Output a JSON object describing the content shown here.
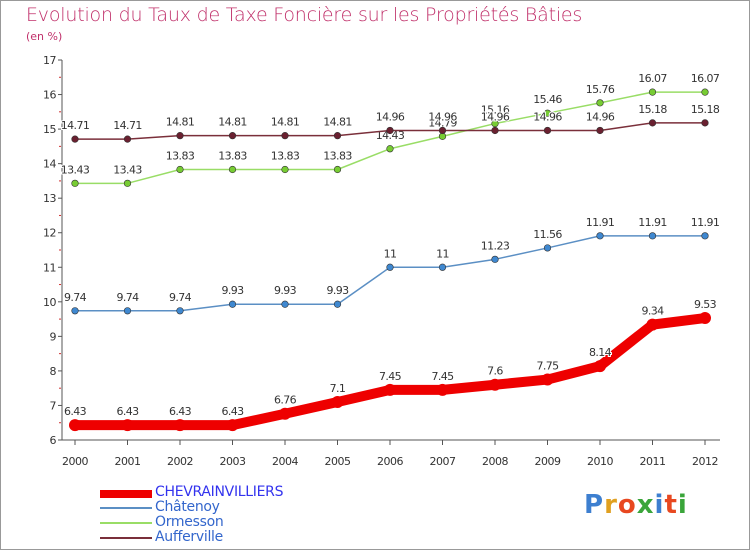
{
  "title": "Evolution du Taux de Taxe Foncière sur les Propriétés Bâties",
  "unit": "(en %)",
  "logo": {
    "letters": [
      "P",
      "r",
      "o",
      "x",
      "i",
      "t",
      "i"
    ],
    "colors": [
      "#3d7fd0",
      "#e0a020",
      "#e84820",
      "#3aa53a",
      "#3d7fd0",
      "#e84820",
      "#3aa53a"
    ]
  },
  "chart_data": {
    "type": "line",
    "title": "Evolution du Taux de Taxe Foncière sur les Propriétés Bâties",
    "ylabel": "(en %)",
    "ylim": [
      6,
      17
    ],
    "yticks": [
      6,
      7,
      8,
      9,
      10,
      11,
      12,
      13,
      14,
      15,
      16,
      17
    ],
    "x": [
      "2000",
      "2001",
      "2002",
      "2003",
      "2004",
      "2005",
      "2006",
      "2007",
      "2008",
      "2009",
      "2010",
      "2011",
      "2012"
    ],
    "grid": false,
    "legend_position": "bottom-left",
    "series": [
      {
        "name": "CHEVRAINVILLIERS",
        "color": "#ee0000",
        "marker_color": "#ee0000",
        "label_color": "#ffffff",
        "bold": true,
        "values": [
          6.43,
          6.43,
          6.43,
          6.43,
          6.76,
          7.1,
          7.45,
          7.45,
          7.6,
          7.75,
          8.14,
          9.34,
          9.53
        ],
        "labels": [
          "6.43",
          "6.43",
          "6.43",
          "6.43",
          "6.76",
          "7.1",
          "7.45",
          "7.45",
          "7.6",
          "7.75",
          "8.14",
          "9.34",
          "9.53"
        ]
      },
      {
        "name": "Châtenoy",
        "color": "#5b8fc4",
        "marker_color": "#3f88d0",
        "values": [
          9.74,
          9.74,
          9.74,
          9.93,
          9.93,
          9.93,
          11,
          11,
          11.23,
          11.56,
          11.91,
          11.91,
          11.91
        ],
        "labels": [
          "9.74",
          "9.74",
          "9.74",
          "9.93",
          "9.93",
          "9.93",
          "11",
          "11",
          "11.23",
          "11.56",
          "11.91",
          "11.91",
          "11.91"
        ]
      },
      {
        "name": "Ormesson",
        "color": "#99dd66",
        "marker_color": "#77cc33",
        "values": [
          13.43,
          13.43,
          13.83,
          13.83,
          13.83,
          13.83,
          14.43,
          14.79,
          15.16,
          15.46,
          15.76,
          16.07,
          16.07
        ],
        "labels": [
          "13.43",
          "13.43",
          "13.83",
          "13.83",
          "13.83",
          "13.83",
          "14.43",
          "14.79",
          "15.16",
          "15.46",
          "15.76",
          "16.07",
          "16.07"
        ]
      },
      {
        "name": "Aufferville",
        "color": "#7a2f3a",
        "marker_color": "#6a2030",
        "values": [
          14.71,
          14.71,
          14.81,
          14.81,
          14.81,
          14.81,
          14.96,
          14.96,
          14.96,
          14.96,
          14.96,
          15.18,
          15.18
        ],
        "labels": [
          "14.71",
          "14.71",
          "14.81",
          "14.81",
          "14.81",
          "14.81",
          "14.96",
          "14.96",
          "14.96",
          "14.96",
          "14.96",
          "15.18",
          "15.18"
        ]
      }
    ]
  }
}
